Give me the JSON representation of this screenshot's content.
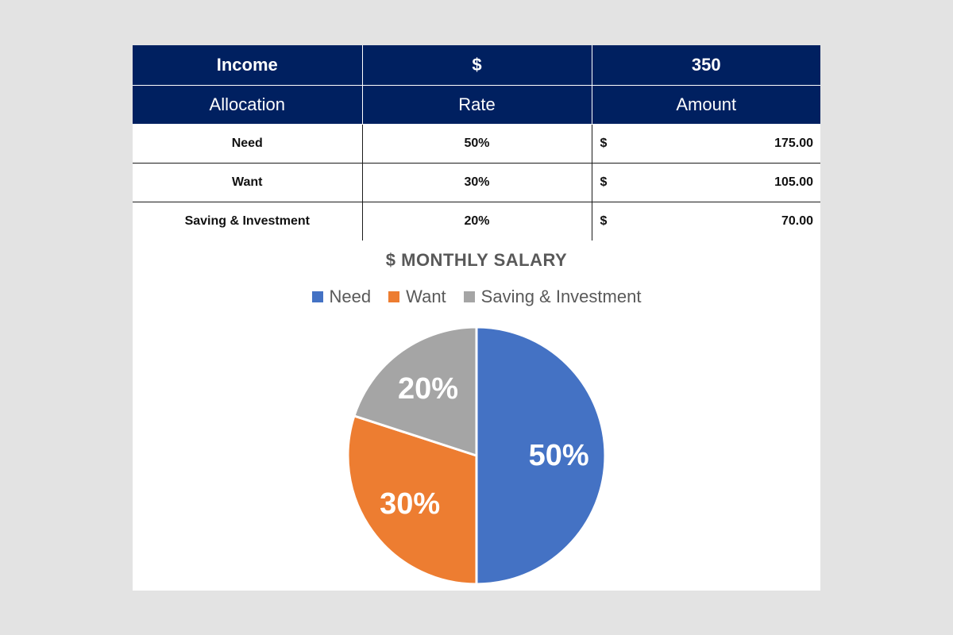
{
  "table": {
    "income_label": "Income",
    "income_currency": "$",
    "income_value": "350",
    "headers": [
      "Allocation",
      "Rate",
      "Amount"
    ],
    "rows": [
      {
        "allocation": "Need",
        "rate": "50%",
        "currency": "$",
        "amount": "175.00"
      },
      {
        "allocation": "Want",
        "rate": "30%",
        "currency": "$",
        "amount": "105.00"
      },
      {
        "allocation": "Saving & Investment",
        "rate": "20%",
        "currency": "$",
        "amount": "70.00"
      }
    ]
  },
  "colors": {
    "header_bg": "#002060",
    "need": "#4472C4",
    "want": "#ED7D31",
    "saving": "#A5A5A5"
  },
  "chart_data": {
    "type": "pie",
    "title": "$ MONTHLY SALARY",
    "legend_position": "top",
    "categories": [
      "Need",
      "Want",
      "Saving & Investment"
    ],
    "values": [
      50,
      30,
      20
    ],
    "data_labels": [
      "50%",
      "30%",
      "20%"
    ]
  }
}
